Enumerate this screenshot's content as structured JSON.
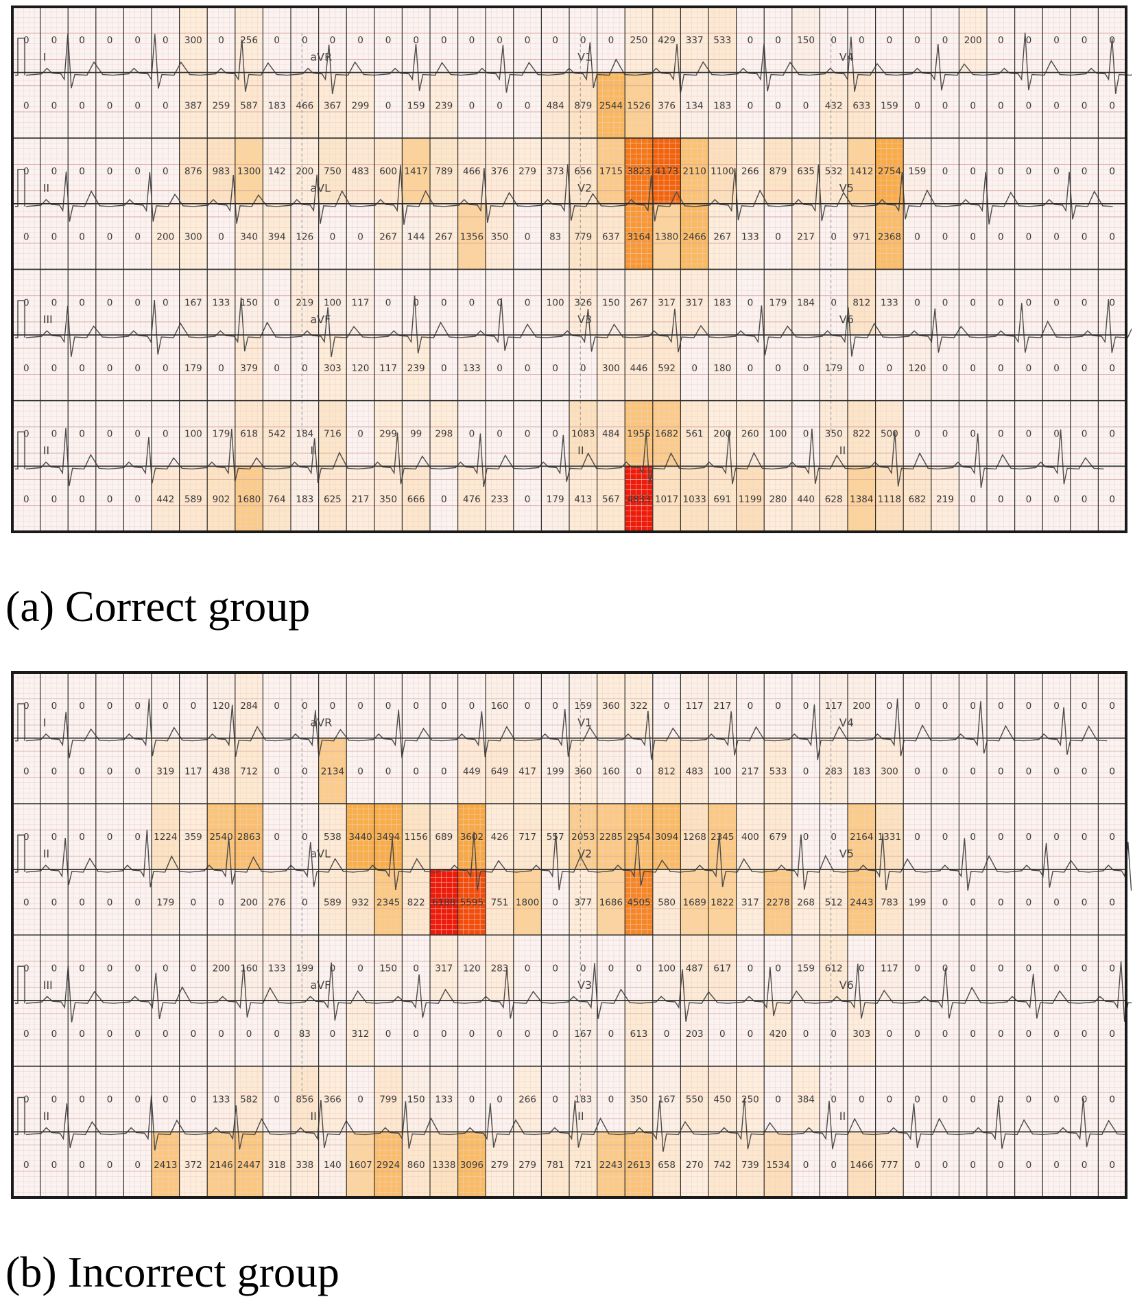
{
  "colors": {
    "paper": "#fbf3f1",
    "minor_grid": "#ecd2cc",
    "major_grid": "#d9aca4",
    "cell_line": "#2e2e2e",
    "frame": "#1a1a1a",
    "trace": "#4a4a4a",
    "heat_low": "#fdebd3",
    "heat_mid": "#f9b04a",
    "heat_high": "#f46a0c",
    "heat_max": "#ee1a0a"
  },
  "chart_data": [
    {
      "type": "heatmap",
      "caption": "(a) Correct group",
      "columns": 40,
      "rows": 8,
      "lead_labels": [
        "I",
        "aVR",
        "V1",
        "V4",
        "II",
        "aVL",
        "V2",
        "V5",
        "III",
        "aVF",
        "V3",
        "V6",
        "II",
        "II",
        "II",
        "II"
      ],
      "values": [
        [
          0,
          0,
          0,
          0,
          0,
          0,
          300,
          0,
          256,
          0,
          0,
          0,
          0,
          0,
          0,
          0,
          0,
          0,
          0,
          0,
          0,
          0,
          250,
          429,
          337,
          533,
          0,
          0,
          150,
          0,
          0,
          0,
          0,
          0,
          200,
          0,
          0,
          0,
          0,
          0
        ],
        [
          0,
          0,
          0,
          0,
          0,
          0,
          387,
          259,
          587,
          183,
          466,
          367,
          299,
          0,
          159,
          239,
          0,
          0,
          0,
          484,
          879,
          2544,
          1526,
          376,
          134,
          183,
          0,
          0,
          0,
          432,
          633,
          159,
          0,
          0,
          0,
          0,
          0,
          0,
          0,
          0
        ],
        [
          0,
          0,
          0,
          0,
          0,
          0,
          876,
          983,
          1300,
          142,
          200,
          750,
          483,
          600,
          1417,
          789,
          466,
          376,
          279,
          373,
          656,
          1715,
          3823,
          4173,
          2110,
          1100,
          266,
          879,
          635,
          532,
          1412,
          2754,
          159,
          0,
          0,
          0,
          0,
          0,
          0,
          0
        ],
        [
          0,
          0,
          0,
          0,
          0,
          200,
          300,
          0,
          340,
          394,
          126,
          0,
          0,
          267,
          144,
          267,
          1356,
          350,
          0,
          83,
          779,
          637,
          3164,
          1380,
          2466,
          267,
          133,
          0,
          217,
          0,
          971,
          2368,
          0,
          0,
          0,
          0,
          0,
          0,
          0,
          0
        ],
        [
          0,
          0,
          0,
          0,
          0,
          0,
          167,
          133,
          150,
          0,
          219,
          100,
          117,
          0,
          0,
          0,
          0,
          0,
          0,
          100,
          326,
          150,
          267,
          317,
          317,
          183,
          0,
          179,
          184,
          0,
          812,
          133,
          0,
          0,
          0,
          0,
          0,
          0,
          0,
          0
        ],
        [
          0,
          0,
          0,
          0,
          0,
          0,
          179,
          0,
          379,
          0,
          0,
          303,
          120,
          117,
          239,
          0,
          133,
          0,
          0,
          0,
          0,
          300,
          446,
          592,
          0,
          180,
          0,
          0,
          0,
          179,
          0,
          0,
          120,
          0,
          0,
          0,
          0,
          0,
          0,
          0
        ],
        [
          0,
          0,
          0,
          0,
          0,
          0,
          100,
          179,
          618,
          542,
          184,
          716,
          0,
          299,
          99,
          298,
          0,
          0,
          0,
          0,
          1083,
          484,
          1955,
          1682,
          561,
          200,
          260,
          100,
          0,
          350,
          822,
          500,
          0,
          0,
          0,
          0,
          0,
          0,
          0,
          0
        ],
        [
          0,
          0,
          0,
          0,
          0,
          442,
          589,
          902,
          1680,
          764,
          183,
          625,
          217,
          350,
          666,
          0,
          476,
          233,
          0,
          179,
          413,
          567,
          4833,
          1017,
          1033,
          691,
          1199,
          280,
          440,
          628,
          1384,
          1118,
          682,
          219,
          0,
          0,
          0,
          0,
          0,
          0
        ]
      ]
    },
    {
      "type": "heatmap",
      "caption": "(b) Incorrect group",
      "columns": 40,
      "rows": 8,
      "lead_labels": [
        "I",
        "aVR",
        "V1",
        "V4",
        "II",
        "aVL",
        "V2",
        "V5",
        "III",
        "aVF",
        "V3",
        "V6",
        "II",
        "II",
        "II",
        "II"
      ],
      "values": [
        [
          0,
          0,
          0,
          0,
          0,
          0,
          0,
          120,
          284,
          0,
          0,
          0,
          0,
          0,
          0,
          0,
          0,
          160,
          0,
          0,
          159,
          360,
          322,
          0,
          117,
          217,
          0,
          0,
          0,
          117,
          200,
          0,
          0,
          0,
          0,
          0,
          0,
          0,
          0,
          0
        ],
        [
          0,
          0,
          0,
          0,
          0,
          319,
          117,
          438,
          712,
          0,
          0,
          2134,
          0,
          0,
          0,
          0,
          449,
          649,
          417,
          199,
          360,
          160,
          0,
          812,
          483,
          100,
          217,
          533,
          0,
          283,
          183,
          300,
          0,
          0,
          0,
          0,
          0,
          0,
          0,
          0
        ],
        [
          0,
          0,
          0,
          0,
          0,
          1224,
          359,
          2540,
          2863,
          0,
          0,
          538,
          3440,
          3494,
          1156,
          689,
          3602,
          426,
          717,
          557,
          2053,
          2285,
          2954,
          3094,
          1268,
          2345,
          400,
          679,
          0,
          0,
          2164,
          1331,
          0,
          0,
          0,
          0,
          0,
          0,
          0,
          0
        ],
        [
          0,
          0,
          0,
          0,
          0,
          179,
          0,
          0,
          200,
          276,
          0,
          589,
          932,
          2345,
          822,
          6188,
          5595,
          751,
          1800,
          0,
          377,
          1686,
          4505,
          580,
          1689,
          1822,
          317,
          2278,
          268,
          512,
          2443,
          783,
          199,
          0,
          0,
          0,
          0,
          0,
          0,
          0
        ],
        [
          0,
          0,
          0,
          0,
          0,
          0,
          0,
          200,
          160,
          133,
          199,
          0,
          0,
          150,
          0,
          317,
          120,
          283,
          0,
          0,
          0,
          0,
          0,
          100,
          487,
          617,
          0,
          0,
          159,
          612,
          0,
          117,
          0,
          0,
          0,
          0,
          0,
          0,
          0,
          0
        ],
        [
          0,
          0,
          0,
          0,
          0,
          0,
          0,
          0,
          0,
          0,
          83,
          0,
          312,
          0,
          0,
          0,
          0,
          0,
          0,
          0,
          167,
          0,
          613,
          0,
          203,
          0,
          0,
          420,
          0,
          0,
          303,
          0,
          0,
          0,
          0,
          0,
          0,
          0,
          0,
          0
        ],
        [
          0,
          0,
          0,
          0,
          0,
          0,
          0,
          133,
          582,
          0,
          856,
          366,
          0,
          799,
          150,
          133,
          0,
          0,
          266,
          0,
          183,
          0,
          350,
          167,
          550,
          450,
          250,
          0,
          384,
          0,
          0,
          0,
          0,
          0,
          0,
          0,
          0,
          0,
          0,
          0
        ],
        [
          0,
          0,
          0,
          0,
          0,
          2413,
          372,
          2146,
          2447,
          318,
          338,
          140,
          1607,
          2924,
          860,
          1338,
          3096,
          279,
          279,
          781,
          721,
          2243,
          2613,
          658,
          270,
          742,
          739,
          1534,
          0,
          0,
          1466,
          777,
          0,
          0,
          0,
          0,
          0,
          0,
          0,
          0
        ]
      ]
    }
  ]
}
